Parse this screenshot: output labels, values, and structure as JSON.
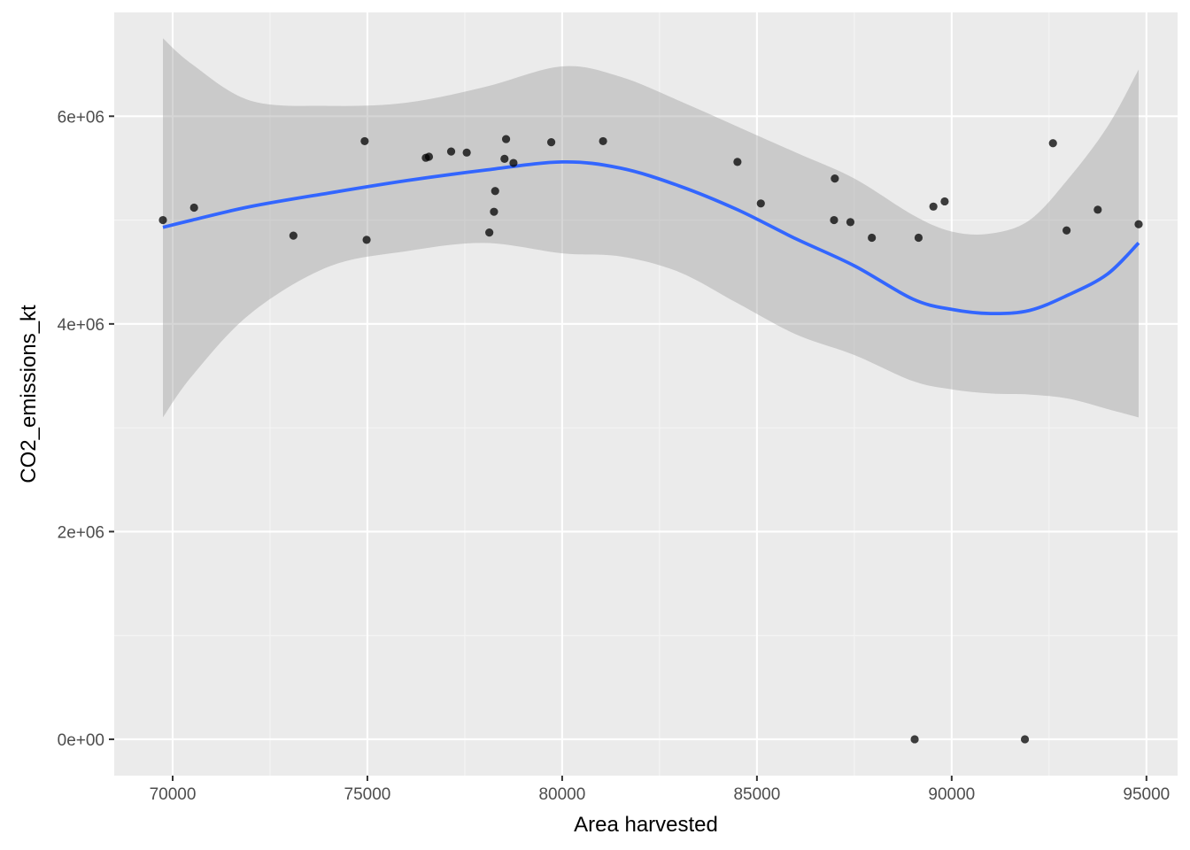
{
  "chart_data": {
    "type": "scatter",
    "title": "",
    "xlabel": "Area harvested",
    "ylabel": "CO2_emissions_kt",
    "xlim": [
      68500,
      95800
    ],
    "ylim": [
      -350000,
      7000000
    ],
    "x_ticks": [
      70000,
      75000,
      80000,
      85000,
      90000,
      95000
    ],
    "x_tick_labels": [
      "70000",
      "75000",
      "80000",
      "85000",
      "90000",
      "95000"
    ],
    "y_ticks": [
      0,
      2000000,
      4000000,
      6000000
    ],
    "y_tick_labels": [
      "0e+00",
      "2e+06",
      "4e+06",
      "6e+06"
    ],
    "grid": true,
    "legend": "none",
    "colors": {
      "panel_background": "#ebebeb",
      "grid_major": "#ffffff",
      "grid_minor": "#f5f5f5",
      "points": "#000000",
      "smooth_line": "#3366ff",
      "confidence_band": "#999999"
    },
    "points": [
      {
        "x": 69750,
        "y": 5000000
      },
      {
        "x": 70550,
        "y": 5120000
      },
      {
        "x": 73100,
        "y": 4850000
      },
      {
        "x": 74930,
        "y": 5760000
      },
      {
        "x": 74980,
        "y": 4810000
      },
      {
        "x": 76500,
        "y": 5600000
      },
      {
        "x": 76580,
        "y": 5610000
      },
      {
        "x": 77150,
        "y": 5660000
      },
      {
        "x": 77550,
        "y": 5650000
      },
      {
        "x": 78130,
        "y": 4880000
      },
      {
        "x": 78250,
        "y": 5080000
      },
      {
        "x": 78280,
        "y": 5280000
      },
      {
        "x": 78520,
        "y": 5590000
      },
      {
        "x": 78560,
        "y": 5780000
      },
      {
        "x": 78750,
        "y": 5550000
      },
      {
        "x": 79720,
        "y": 5750000
      },
      {
        "x": 81050,
        "y": 5760000
      },
      {
        "x": 84500,
        "y": 5560000
      },
      {
        "x": 85100,
        "y": 5160000
      },
      {
        "x": 86980,
        "y": 5000000
      },
      {
        "x": 87000,
        "y": 5400000
      },
      {
        "x": 87400,
        "y": 4980000
      },
      {
        "x": 87950,
        "y": 4830000
      },
      {
        "x": 89050,
        "y": 0
      },
      {
        "x": 89150,
        "y": 4830000
      },
      {
        "x": 89530,
        "y": 5130000
      },
      {
        "x": 89820,
        "y": 5180000
      },
      {
        "x": 91880,
        "y": 0
      },
      {
        "x": 92600,
        "y": 5740000
      },
      {
        "x": 92950,
        "y": 4900000
      },
      {
        "x": 93750,
        "y": 5100000
      },
      {
        "x": 94800,
        "y": 4960000
      }
    ],
    "smooth": {
      "x": [
        69750,
        70500,
        72000,
        74000,
        76000,
        78000,
        80000,
        81500,
        83000,
        84500,
        86000,
        87500,
        89000,
        90000,
        91000,
        92000,
        93000,
        94000,
        94800
      ],
      "y": [
        4930000,
        5000000,
        5130000,
        5260000,
        5380000,
        5480000,
        5560000,
        5500000,
        5330000,
        5100000,
        4820000,
        4560000,
        4240000,
        4140000,
        4100000,
        4130000,
        4280000,
        4480000,
        4780000
      ],
      "lower": [
        3100000,
        3500000,
        4100000,
        4550000,
        4700000,
        4780000,
        4680000,
        4650000,
        4500000,
        4200000,
        3900000,
        3700000,
        3450000,
        3370000,
        3330000,
        3320000,
        3280000,
        3180000,
        3100000
      ],
      "upper": [
        6750000,
        6500000,
        6150000,
        6100000,
        6130000,
        6280000,
        6480000,
        6380000,
        6150000,
        5900000,
        5650000,
        5400000,
        5050000,
        4890000,
        4870000,
        5000000,
        5400000,
        5900000,
        6450000
      ]
    }
  }
}
